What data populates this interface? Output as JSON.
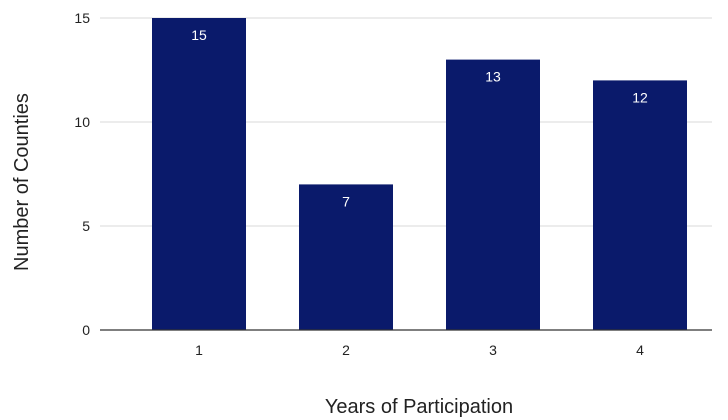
{
  "chart_data": {
    "type": "bar",
    "categories": [
      "1",
      "2",
      "3",
      "4"
    ],
    "values": [
      15,
      7,
      13,
      12
    ],
    "xlabel": "Years of Participation",
    "ylabel": "Number of Counties",
    "ylim": [
      0,
      15
    ],
    "yticks": [
      "0",
      "5",
      "10",
      "15"
    ],
    "data_labels": [
      "15",
      "7",
      "13",
      "12"
    ],
    "grid": true,
    "legend": "none",
    "colors": {
      "bar": "#0a1a6b",
      "grid": "#d9d9d9",
      "axis": "#333333"
    }
  }
}
